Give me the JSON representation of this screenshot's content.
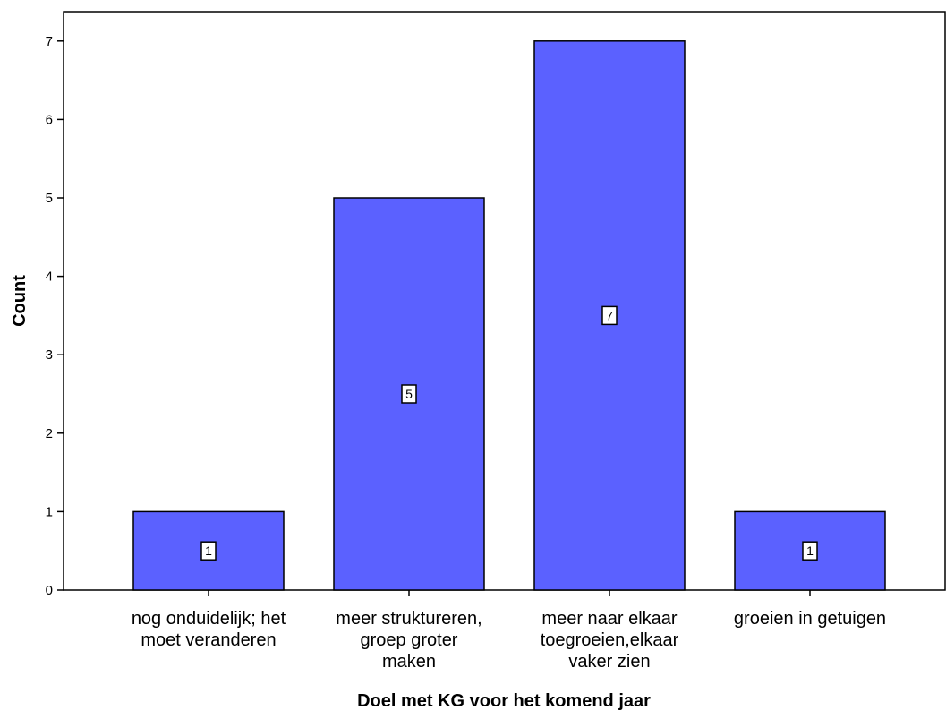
{
  "chart_data": {
    "type": "bar",
    "title": "",
    "xlabel": "Doel met KG voor het komend jaar",
    "ylabel": "Count",
    "categories": [
      [
        "nog onduidelijk; het",
        "moet veranderen"
      ],
      [
        "meer struktureren,",
        "groep groter",
        "maken"
      ],
      [
        "meer naar elkaar",
        "toegroeien,elkaar",
        "vaker zien"
      ],
      [
        "groeien in getuigen"
      ]
    ],
    "values": [
      1,
      5,
      7,
      1
    ],
    "data_labels": [
      "1",
      "5",
      "7",
      "1"
    ],
    "yticks": [
      "0",
      "1",
      "2",
      "3",
      "4",
      "5",
      "6",
      "7"
    ],
    "ylim": [
      0,
      7.4
    ],
    "grid": false,
    "colors": {
      "bar": "#5b61ff",
      "bar_stroke": "#000000",
      "axis": "#000000"
    }
  }
}
